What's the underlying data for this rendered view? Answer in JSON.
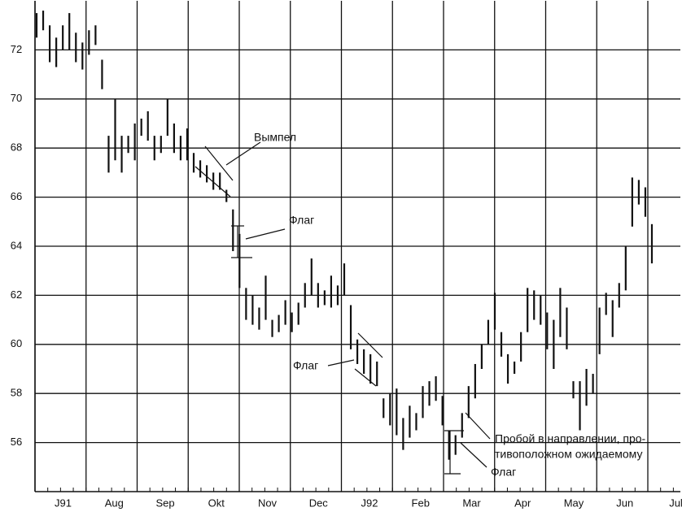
{
  "chart_data": {
    "type": "range-bar",
    "categories": [
      "J91",
      "Aug",
      "Sep",
      "Okt",
      "Nov",
      "Dec",
      "J92",
      "Feb",
      "Mar",
      "Apr",
      "May",
      "Jun",
      "Jul"
    ],
    "ylim": [
      54,
      74
    ],
    "yticks": [
      56,
      58,
      60,
      62,
      64,
      66,
      68,
      70,
      72
    ],
    "grid": true,
    "series": [
      {
        "color": "#111111",
        "high": [
          73.5,
          73.6,
          73,
          72.5,
          73,
          73.5,
          72.7,
          72.3,
          72.8,
          73,
          71.6,
          68.5,
          70,
          68.5,
          68.5,
          69,
          69.2,
          69.5,
          68.5,
          68.5,
          70,
          69,
          68.5,
          68.8,
          67.8,
          67.5,
          67.3,
          67,
          67,
          66.3,
          65.5,
          64.5,
          62.3,
          62,
          61.5,
          62.8,
          61,
          61.2,
          61.8,
          61.3,
          61.7,
          62.5,
          63.5,
          62.5,
          62.2,
          62.8,
          62.4,
          63.3,
          61.6,
          60.2,
          59.8,
          59.6,
          59.3,
          57.8,
          58,
          58.2,
          57,
          57.5,
          57.2,
          58.3,
          58.5,
          58.7,
          57.9,
          56.5,
          56.3,
          57.2,
          58.3,
          59.2,
          60,
          61,
          62.1,
          60.5,
          59.6,
          59.3,
          60.5,
          62.3,
          62.2,
          62,
          61.3,
          61,
          62.3,
          61.5,
          58.5,
          58.5,
          59,
          58.8,
          61.5,
          62.1,
          61.8,
          62.5,
          64,
          66.8,
          66.7,
          66.4,
          64.9
        ],
        "low": [
          72.5,
          72.8,
          71.5,
          71.3,
          72,
          72,
          71.5,
          71.2,
          71.8,
          72.2,
          70.4,
          67,
          67.5,
          67,
          67.8,
          67.5,
          68.5,
          68.3,
          67.5,
          67.8,
          68.5,
          67.8,
          67.5,
          67.5,
          67,
          66.8,
          66.6,
          66.3,
          66.3,
          65.8,
          63.8,
          62.3,
          61,
          60.8,
          60.6,
          61,
          60.3,
          60.5,
          60.8,
          60.5,
          60.8,
          61.5,
          62,
          61.5,
          61.6,
          61.5,
          61.6,
          62,
          59.8,
          59.2,
          58.8,
          58.4,
          58.3,
          57,
          56.7,
          56.3,
          55.7,
          56.2,
          56.5,
          57,
          57.5,
          57.7,
          56.7,
          55.3,
          55.5,
          56.2,
          57,
          57.8,
          59,
          60,
          60.6,
          59.5,
          58.4,
          58.8,
          59.3,
          60.5,
          61,
          60.8,
          59.8,
          59,
          60.3,
          59.8,
          57.8,
          56.5,
          57.5,
          58,
          59.6,
          61.2,
          60.3,
          61.5,
          62.2,
          64.8,
          65.7,
          65.2,
          63.3
        ]
      }
    ],
    "annotations": [
      "Вымпел",
      "Флаг",
      "Флаг",
      "Пробой в направлении, про-",
      "тивоположном ожидаемому",
      "Флаг"
    ]
  }
}
